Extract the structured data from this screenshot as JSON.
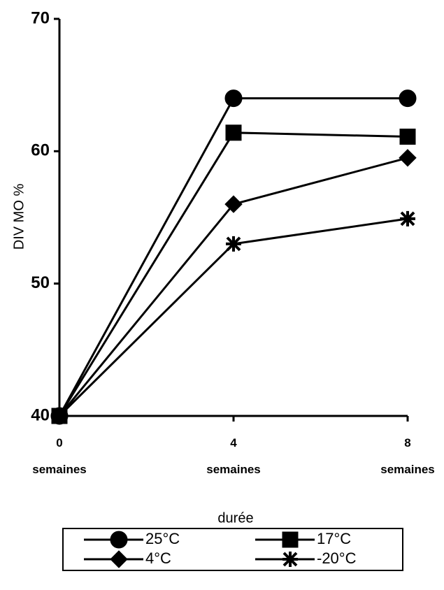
{
  "chart_data": {
    "type": "line",
    "y_label": "DIV MO %",
    "x_label": "durée",
    "categories": [
      "0 semaines",
      "4 semaines",
      "8 semaines"
    ],
    "series": [
      {
        "name": "25°C",
        "color": "#000000",
        "marker": "circle",
        "values": [
          40,
          64,
          64
        ]
      },
      {
        "name": "17°C",
        "color": "#000000",
        "marker": "square",
        "values": [
          40,
          61.4,
          61.1
        ]
      },
      {
        "name": "4°C",
        "color": "#000000",
        "marker": "diamond",
        "values": [
          40,
          56,
          59.5
        ]
      },
      {
        "name": "-20°C",
        "color": "#000000",
        "marker": "asterisk",
        "values": [
          40,
          53,
          54.9
        ]
      }
    ],
    "ylim": [
      40,
      70
    ],
    "yticks": [
      40,
      50,
      60,
      70
    ],
    "grid": false,
    "legend": "bottom"
  }
}
